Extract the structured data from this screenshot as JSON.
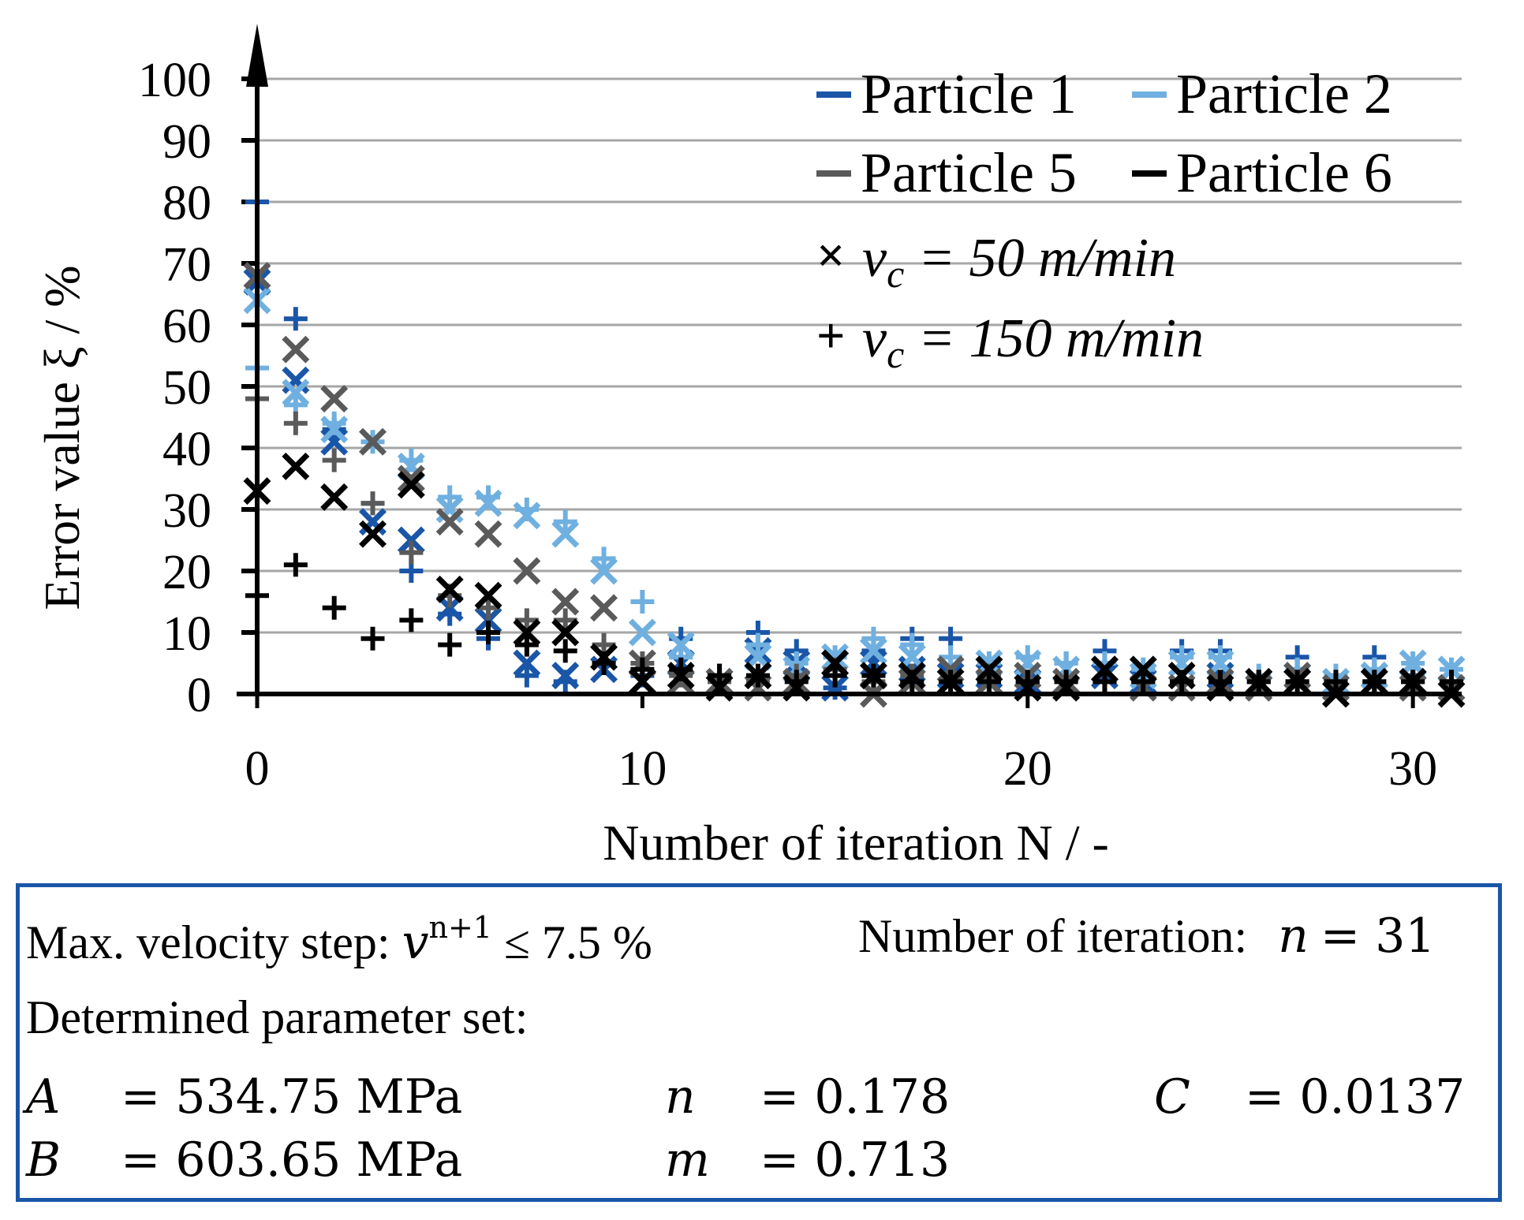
{
  "chart_data": {
    "type": "scatter",
    "ylabel": "Error value ξ / %",
    "xlabel": "Number of iteration N / -",
    "xlim": [
      0,
      31
    ],
    "ylim": [
      0,
      100
    ],
    "x_ticks": [
      "0",
      "10",
      "20",
      "30"
    ],
    "y_ticks": [
      "0",
      "10",
      "20",
      "30",
      "40",
      "50",
      "60",
      "70",
      "80",
      "90",
      "100"
    ],
    "grid": "horizontal",
    "legend_position": "top-right",
    "legend": {
      "series": [
        {
          "name": "Particle 1",
          "color": "#1a56a8"
        },
        {
          "name": "Particle 2",
          "color": "#6fb0e0"
        },
        {
          "name": "Particle 5",
          "color": "#5a5a5a"
        },
        {
          "name": "Particle 6",
          "color": "#000000"
        }
      ],
      "markers": [
        {
          "symbol": "×",
          "label": "v_c = 50 m/min"
        },
        {
          "symbol": "+",
          "label": "v_c = 150 m/min"
        }
      ]
    },
    "series": [
      {
        "name": "Particle 1",
        "color": "#1a56a8",
        "marker": "x",
        "vc": "50 m/min",
        "x": [
          0,
          1,
          2,
          3,
          4,
          5,
          6,
          7,
          8,
          9,
          10,
          11,
          12,
          13,
          14,
          15,
          16,
          17,
          18,
          19,
          20,
          21,
          22,
          23,
          24,
          25,
          26,
          27,
          28,
          29,
          30,
          31
        ],
        "y": [
          67,
          51,
          41,
          28,
          25,
          14,
          12,
          5,
          3,
          4,
          2,
          5,
          2,
          7,
          5,
          1,
          5,
          4,
          3,
          3,
          2,
          2,
          3,
          2,
          3,
          3,
          1,
          2,
          1,
          3,
          2,
          1
        ]
      },
      {
        "name": "Particle 1",
        "color": "#1a56a8",
        "marker": "+",
        "vc": "150 m/min",
        "x": [
          0,
          1,
          2,
          3,
          4,
          5,
          6,
          7,
          8,
          9,
          10,
          11,
          12,
          13,
          14,
          15,
          16,
          17,
          18,
          19,
          20,
          21,
          22,
          23,
          24,
          25,
          26,
          27,
          28,
          29,
          30,
          31
        ],
        "y": [
          80,
          61,
          43,
          31,
          20,
          13,
          9,
          3,
          2,
          5,
          3,
          9,
          3,
          10,
          7,
          1,
          7,
          9,
          9,
          2,
          2,
          5,
          7,
          2,
          7,
          7,
          2,
          6,
          2,
          6,
          3,
          2
        ]
      },
      {
        "name": "Particle 2",
        "color": "#6fb0e0",
        "marker": "x",
        "vc": "50 m/min",
        "x": [
          0,
          1,
          2,
          3,
          4,
          5,
          6,
          7,
          8,
          9,
          10,
          11,
          12,
          13,
          14,
          15,
          16,
          17,
          18,
          19,
          20,
          21,
          22,
          23,
          24,
          25,
          26,
          27,
          28,
          29,
          30,
          31
        ],
        "y": [
          64,
          49,
          43,
          41,
          37,
          30,
          31,
          29,
          26,
          20,
          10,
          8,
          2,
          6,
          4,
          6,
          7,
          6,
          4,
          5,
          5,
          4,
          4,
          3,
          5,
          5,
          2,
          3,
          2,
          3,
          5,
          4
        ]
      },
      {
        "name": "Particle 2",
        "color": "#6fb0e0",
        "marker": "+",
        "vc": "150 m/min",
        "x": [
          0,
          1,
          2,
          3,
          4,
          5,
          6,
          7,
          8,
          9,
          10,
          11,
          12,
          13,
          14,
          15,
          16,
          17,
          18,
          19,
          20,
          21,
          22,
          23,
          24,
          25,
          26,
          27,
          28,
          29,
          30,
          31
        ],
        "y": [
          53,
          47,
          44,
          41,
          38,
          32,
          32,
          30,
          28,
          22,
          15,
          6,
          3,
          8,
          5,
          6,
          9,
          8,
          6,
          5,
          6,
          5,
          5,
          4,
          6,
          6,
          3,
          4,
          3,
          4,
          5,
          4
        ]
      },
      {
        "name": "Particle 5",
        "color": "#5a5a5a",
        "marker": "x",
        "vc": "50 m/min",
        "x": [
          0,
          1,
          2,
          3,
          4,
          5,
          6,
          7,
          8,
          9,
          10,
          11,
          12,
          13,
          14,
          15,
          16,
          17,
          18,
          19,
          20,
          21,
          22,
          23,
          24,
          25,
          26,
          27,
          28,
          29,
          30,
          31
        ],
        "y": [
          68,
          56,
          48,
          41,
          35,
          28,
          26,
          20,
          15,
          14,
          5,
          2,
          2,
          1,
          2,
          5,
          0,
          2,
          4,
          2,
          3,
          2,
          4,
          1,
          1,
          2,
          1,
          3,
          1,
          2,
          1,
          1
        ]
      },
      {
        "name": "Particle 5",
        "color": "#5a5a5a",
        "marker": "+",
        "vc": "150 m/min",
        "x": [
          0,
          1,
          2,
          3,
          4,
          5,
          6,
          7,
          8,
          9,
          10,
          11,
          12,
          13,
          14,
          15,
          16,
          17,
          18,
          19,
          20,
          21,
          22,
          23,
          24,
          25,
          26,
          27,
          28,
          29,
          30,
          31
        ],
        "y": [
          48,
          44,
          38,
          31,
          23,
          16,
          14,
          12,
          12,
          8,
          5,
          3,
          2,
          2,
          3,
          4,
          2,
          3,
          2,
          3,
          2,
          2,
          2,
          2,
          2,
          2,
          2,
          2,
          2,
          2,
          2,
          2
        ]
      },
      {
        "name": "Particle 6",
        "color": "#000000",
        "marker": "x",
        "vc": "50 m/min",
        "x": [
          0,
          1,
          2,
          3,
          4,
          5,
          6,
          7,
          8,
          9,
          10,
          11,
          12,
          13,
          14,
          15,
          16,
          17,
          18,
          19,
          20,
          21,
          22,
          23,
          24,
          25,
          26,
          27,
          28,
          29,
          30,
          31
        ],
        "y": [
          33,
          37,
          32,
          26,
          34,
          17,
          16,
          10,
          10,
          6,
          2,
          3,
          1,
          3,
          1,
          5,
          3,
          3,
          2,
          4,
          1,
          1,
          4,
          4,
          3,
          1,
          2,
          2,
          0,
          2,
          2,
          0
        ]
      },
      {
        "name": "Particle 6",
        "color": "#000000",
        "marker": "+",
        "vc": "150 m/min",
        "x": [
          0,
          1,
          2,
          3,
          4,
          5,
          6,
          7,
          8,
          9,
          10,
          11,
          12,
          13,
          14,
          15,
          16,
          17,
          18,
          19,
          20,
          21,
          22,
          23,
          24,
          25,
          26,
          27,
          28,
          29,
          30,
          31
        ],
        "y": [
          16,
          21,
          14,
          9,
          12,
          8,
          10,
          8,
          7,
          5,
          4,
          4,
          3,
          3,
          2,
          3,
          3,
          2,
          2,
          2,
          2,
          2,
          2,
          2,
          2,
          2,
          2,
          2,
          2,
          2,
          2,
          2
        ]
      }
    ]
  },
  "info": {
    "max_step_label": "Max. velocity step:",
    "max_step_var": "v",
    "max_step_sup": "n+1",
    "max_step_value": "≤ 7.5 %",
    "iter_label": "Number of iteration:",
    "iter_var": "n",
    "iter_value": "= 31",
    "param_heading": "Determined parameter set:",
    "params": [
      {
        "name": "A",
        "value": "= 534.75  MPa"
      },
      {
        "name": "n",
        "value": "= 0.178"
      },
      {
        "name": "C",
        "value": "= 0.0137"
      },
      {
        "name": "B",
        "value": "= 603.65 MPa"
      },
      {
        "name": "m",
        "value": "= 0.713"
      }
    ]
  }
}
